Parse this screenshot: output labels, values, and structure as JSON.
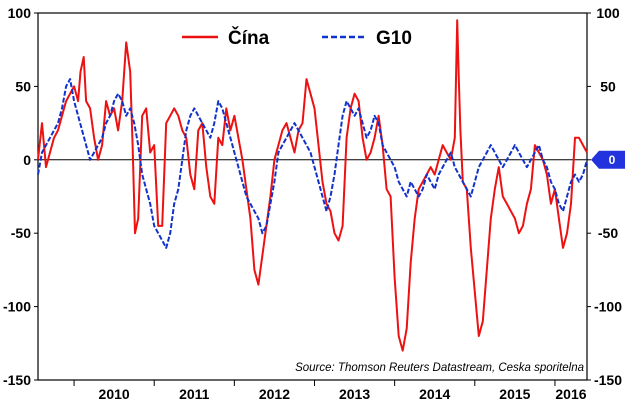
{
  "chart_data": {
    "type": "line",
    "ylim": [
      -150,
      100
    ],
    "yticks": [
      -150,
      -100,
      -50,
      0,
      50,
      100
    ],
    "x_start": 2009.55,
    "x_end": 2016.4,
    "year_labels": [
      "2010",
      "2011",
      "2012",
      "2013",
      "2014",
      "2015",
      "2016"
    ],
    "legend_position": "top-center",
    "source": "Source: Thomson Reuters Datastream, Ceska sporitelna",
    "zero_marker_label": "0",
    "zero_marker_color": "#2233dd",
    "grid": false,
    "series": [
      {
        "name": "Čína",
        "color": "#ee1111",
        "dash": "solid",
        "points": [
          [
            2009.55,
            0
          ],
          [
            2009.6,
            25
          ],
          [
            2009.65,
            -5
          ],
          [
            2009.7,
            5
          ],
          [
            2009.75,
            15
          ],
          [
            2009.8,
            20
          ],
          [
            2009.85,
            30
          ],
          [
            2009.9,
            40
          ],
          [
            2009.95,
            45
          ],
          [
            2010.0,
            50
          ],
          [
            2010.05,
            40
          ],
          [
            2010.08,
            60
          ],
          [
            2010.12,
            70
          ],
          [
            2010.15,
            40
          ],
          [
            2010.2,
            35
          ],
          [
            2010.25,
            15
          ],
          [
            2010.3,
            0
          ],
          [
            2010.35,
            10
          ],
          [
            2010.4,
            40
          ],
          [
            2010.45,
            30
          ],
          [
            2010.5,
            35
          ],
          [
            2010.55,
            20
          ],
          [
            2010.6,
            40
          ],
          [
            2010.65,
            80
          ],
          [
            2010.7,
            60
          ],
          [
            2010.73,
            10
          ],
          [
            2010.76,
            -50
          ],
          [
            2010.8,
            -40
          ],
          [
            2010.85,
            30
          ],
          [
            2010.9,
            35
          ],
          [
            2010.95,
            5
          ],
          [
            2011.0,
            10
          ],
          [
            2011.05,
            -45
          ],
          [
            2011.1,
            -45
          ],
          [
            2011.15,
            25
          ],
          [
            2011.2,
            30
          ],
          [
            2011.25,
            35
          ],
          [
            2011.3,
            30
          ],
          [
            2011.35,
            20
          ],
          [
            2011.4,
            15
          ],
          [
            2011.45,
            -10
          ],
          [
            2011.5,
            -20
          ],
          [
            2011.55,
            20
          ],
          [
            2011.6,
            25
          ],
          [
            2011.65,
            -5
          ],
          [
            2011.7,
            -25
          ],
          [
            2011.75,
            -30
          ],
          [
            2011.8,
            15
          ],
          [
            2011.85,
            10
          ],
          [
            2011.9,
            35
          ],
          [
            2011.95,
            20
          ],
          [
            2012.0,
            30
          ],
          [
            2012.05,
            15
          ],
          [
            2012.1,
            0
          ],
          [
            2012.15,
            -20
          ],
          [
            2012.2,
            -40
          ],
          [
            2012.25,
            -75
          ],
          [
            2012.3,
            -85
          ],
          [
            2012.35,
            -65
          ],
          [
            2012.4,
            -45
          ],
          [
            2012.45,
            -25
          ],
          [
            2012.5,
            0
          ],
          [
            2012.55,
            10
          ],
          [
            2012.6,
            20
          ],
          [
            2012.65,
            25
          ],
          [
            2012.7,
            15
          ],
          [
            2012.75,
            5
          ],
          [
            2012.8,
            20
          ],
          [
            2012.85,
            25
          ],
          [
            2012.9,
            55
          ],
          [
            2012.95,
            45
          ],
          [
            2013.0,
            35
          ],
          [
            2013.05,
            10
          ],
          [
            2013.1,
            -15
          ],
          [
            2013.15,
            -30
          ],
          [
            2013.2,
            -35
          ],
          [
            2013.25,
            -50
          ],
          [
            2013.3,
            -55
          ],
          [
            2013.35,
            -45
          ],
          [
            2013.4,
            15
          ],
          [
            2013.45,
            35
          ],
          [
            2013.5,
            45
          ],
          [
            2013.55,
            40
          ],
          [
            2013.6,
            15
          ],
          [
            2013.65,
            0
          ],
          [
            2013.7,
            5
          ],
          [
            2013.75,
            15
          ],
          [
            2013.8,
            30
          ],
          [
            2013.85,
            10
          ],
          [
            2013.9,
            -20
          ],
          [
            2013.95,
            -25
          ],
          [
            2014.0,
            -80
          ],
          [
            2014.05,
            -120
          ],
          [
            2014.1,
            -130
          ],
          [
            2014.15,
            -115
          ],
          [
            2014.2,
            -70
          ],
          [
            2014.25,
            -40
          ],
          [
            2014.3,
            -20
          ],
          [
            2014.35,
            -15
          ],
          [
            2014.4,
            -10
          ],
          [
            2014.45,
            -5
          ],
          [
            2014.5,
            -10
          ],
          [
            2014.55,
            0
          ],
          [
            2014.6,
            10
          ],
          [
            2014.65,
            5
          ],
          [
            2014.7,
            0
          ],
          [
            2014.75,
            15
          ],
          [
            2014.78,
            95
          ],
          [
            2014.8,
            55
          ],
          [
            2014.82,
            20
          ],
          [
            2014.85,
            -15
          ],
          [
            2014.9,
            -20
          ],
          [
            2014.95,
            -60
          ],
          [
            2015.0,
            -90
          ],
          [
            2015.05,
            -120
          ],
          [
            2015.1,
            -110
          ],
          [
            2015.15,
            -75
          ],
          [
            2015.2,
            -40
          ],
          [
            2015.25,
            -20
          ],
          [
            2015.3,
            -5
          ],
          [
            2015.35,
            -25
          ],
          [
            2015.4,
            -30
          ],
          [
            2015.45,
            -35
          ],
          [
            2015.5,
            -40
          ],
          [
            2015.55,
            -50
          ],
          [
            2015.6,
            -45
          ],
          [
            2015.65,
            -30
          ],
          [
            2015.7,
            -20
          ],
          [
            2015.75,
            10
          ],
          [
            2015.8,
            5
          ],
          [
            2015.85,
            0
          ],
          [
            2015.9,
            -10
          ],
          [
            2015.95,
            -30
          ],
          [
            2016.0,
            -20
          ],
          [
            2016.05,
            -40
          ],
          [
            2016.1,
            -60
          ],
          [
            2016.15,
            -50
          ],
          [
            2016.2,
            -30
          ],
          [
            2016.25,
            15
          ],
          [
            2016.3,
            15
          ],
          [
            2016.35,
            10
          ],
          [
            2016.4,
            5
          ]
        ]
      },
      {
        "name": "G10",
        "color": "#1133cc",
        "dash": "dashed",
        "points": [
          [
            2009.55,
            -10
          ],
          [
            2009.6,
            5
          ],
          [
            2009.65,
            10
          ],
          [
            2009.7,
            15
          ],
          [
            2009.75,
            20
          ],
          [
            2009.8,
            25
          ],
          [
            2009.85,
            35
          ],
          [
            2009.9,
            50
          ],
          [
            2009.95,
            55
          ],
          [
            2010.0,
            40
          ],
          [
            2010.05,
            30
          ],
          [
            2010.1,
            20
          ],
          [
            2010.15,
            10
          ],
          [
            2010.2,
            0
          ],
          [
            2010.25,
            5
          ],
          [
            2010.3,
            10
          ],
          [
            2010.35,
            15
          ],
          [
            2010.4,
            25
          ],
          [
            2010.45,
            30
          ],
          [
            2010.5,
            40
          ],
          [
            2010.55,
            45
          ],
          [
            2010.6,
            40
          ],
          [
            2010.65,
            30
          ],
          [
            2010.7,
            35
          ],
          [
            2010.75,
            25
          ],
          [
            2010.8,
            10
          ],
          [
            2010.85,
            -10
          ],
          [
            2010.9,
            -20
          ],
          [
            2010.95,
            -30
          ],
          [
            2011.0,
            -45
          ],
          [
            2011.05,
            -50
          ],
          [
            2011.1,
            -55
          ],
          [
            2011.15,
            -60
          ],
          [
            2011.2,
            -50
          ],
          [
            2011.25,
            -30
          ],
          [
            2011.3,
            -20
          ],
          [
            2011.35,
            0
          ],
          [
            2011.4,
            20
          ],
          [
            2011.45,
            30
          ],
          [
            2011.5,
            35
          ],
          [
            2011.55,
            30
          ],
          [
            2011.6,
            25
          ],
          [
            2011.65,
            20
          ],
          [
            2011.7,
            15
          ],
          [
            2011.75,
            25
          ],
          [
            2011.8,
            40
          ],
          [
            2011.85,
            35
          ],
          [
            2011.9,
            25
          ],
          [
            2011.95,
            15
          ],
          [
            2012.0,
            5
          ],
          [
            2012.05,
            -5
          ],
          [
            2012.1,
            -15
          ],
          [
            2012.15,
            -25
          ],
          [
            2012.2,
            -30
          ],
          [
            2012.25,
            -35
          ],
          [
            2012.3,
            -40
          ],
          [
            2012.35,
            -50
          ],
          [
            2012.4,
            -45
          ],
          [
            2012.45,
            -30
          ],
          [
            2012.5,
            -15
          ],
          [
            2012.55,
            5
          ],
          [
            2012.6,
            10
          ],
          [
            2012.65,
            15
          ],
          [
            2012.7,
            20
          ],
          [
            2012.75,
            25
          ],
          [
            2012.8,
            20
          ],
          [
            2012.85,
            15
          ],
          [
            2012.9,
            10
          ],
          [
            2012.95,
            5
          ],
          [
            2013.0,
            -5
          ],
          [
            2013.05,
            -15
          ],
          [
            2013.1,
            -25
          ],
          [
            2013.15,
            -35
          ],
          [
            2013.2,
            -25
          ],
          [
            2013.25,
            -10
          ],
          [
            2013.3,
            10
          ],
          [
            2013.35,
            30
          ],
          [
            2013.4,
            40
          ],
          [
            2013.45,
            35
          ],
          [
            2013.5,
            30
          ],
          [
            2013.55,
            35
          ],
          [
            2013.6,
            25
          ],
          [
            2013.65,
            15
          ],
          [
            2013.7,
            20
          ],
          [
            2013.75,
            30
          ],
          [
            2013.8,
            25
          ],
          [
            2013.85,
            10
          ],
          [
            2013.9,
            5
          ],
          [
            2013.95,
            0
          ],
          [
            2014.0,
            -5
          ],
          [
            2014.05,
            -15
          ],
          [
            2014.1,
            -20
          ],
          [
            2014.15,
            -25
          ],
          [
            2014.2,
            -15
          ],
          [
            2014.25,
            -20
          ],
          [
            2014.3,
            -25
          ],
          [
            2014.35,
            -20
          ],
          [
            2014.4,
            -10
          ],
          [
            2014.45,
            -15
          ],
          [
            2014.5,
            -20
          ],
          [
            2014.55,
            -10
          ],
          [
            2014.6,
            -5
          ],
          [
            2014.65,
            0
          ],
          [
            2014.7,
            5
          ],
          [
            2014.75,
            -5
          ],
          [
            2014.8,
            -10
          ],
          [
            2014.85,
            -15
          ],
          [
            2014.9,
            -20
          ],
          [
            2014.95,
            -25
          ],
          [
            2015.0,
            -15
          ],
          [
            2015.05,
            -5
          ],
          [
            2015.1,
            0
          ],
          [
            2015.15,
            5
          ],
          [
            2015.2,
            10
          ],
          [
            2015.25,
            5
          ],
          [
            2015.3,
            0
          ],
          [
            2015.35,
            -5
          ],
          [
            2015.4,
            0
          ],
          [
            2015.45,
            5
          ],
          [
            2015.5,
            10
          ],
          [
            2015.55,
            5
          ],
          [
            2015.6,
            0
          ],
          [
            2015.65,
            -5
          ],
          [
            2015.7,
            0
          ],
          [
            2015.75,
            5
          ],
          [
            2015.8,
            10
          ],
          [
            2015.85,
            0
          ],
          [
            2015.9,
            -5
          ],
          [
            2015.95,
            -15
          ],
          [
            2016.0,
            -20
          ],
          [
            2016.05,
            -30
          ],
          [
            2016.1,
            -35
          ],
          [
            2016.15,
            -25
          ],
          [
            2016.2,
            -15
          ],
          [
            2016.25,
            -10
          ],
          [
            2016.3,
            -15
          ],
          [
            2016.35,
            -10
          ],
          [
            2016.4,
            0
          ]
        ]
      }
    ]
  }
}
